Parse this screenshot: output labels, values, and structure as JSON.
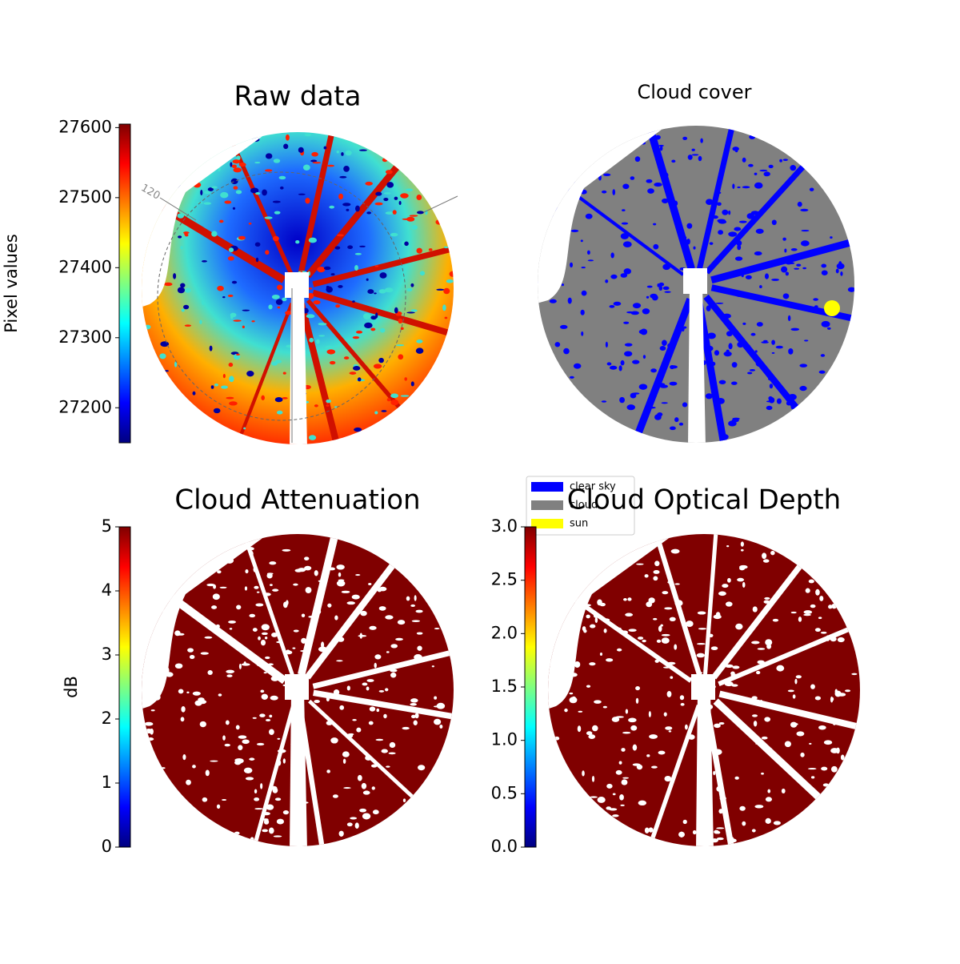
{
  "chart_data": [
    {
      "type": "image",
      "title": "Raw data",
      "colorbar_label": "Pixel values",
      "colormap": "jet",
      "ylim": [
        27150,
        27605
      ],
      "yticks": [
        27200,
        27300,
        27400,
        27500,
        27600
      ],
      "annotation": "120"
    },
    {
      "type": "classification",
      "title": "Cloud cover",
      "legend": [
        {
          "name": "clear sky",
          "color": "#0000ff"
        },
        {
          "name": "cloud",
          "color": "#808080"
        },
        {
          "name": "sun",
          "color": "#ffff00"
        }
      ]
    },
    {
      "type": "image",
      "title": "Cloud Attenuation",
      "colorbar_label": "dB",
      "colormap": "jet",
      "ylim": [
        0,
        5
      ],
      "yticks": [
        0,
        1,
        2,
        3,
        4,
        5
      ]
    },
    {
      "type": "image",
      "title": "Cloud Optical Depth",
      "colormap": "jet",
      "ylim": [
        0,
        3
      ],
      "yticks": [
        {
          "value": 0,
          "label": "0.0"
        },
        {
          "value": 0.5,
          "label": "0.5"
        },
        {
          "value": 1,
          "label": "1.0"
        },
        {
          "value": 1.5,
          "label": "1.5"
        },
        {
          "value": 2,
          "label": "2.0"
        },
        {
          "value": 2.5,
          "label": "2.5"
        },
        {
          "value": 3,
          "label": "3.0"
        }
      ]
    }
  ]
}
